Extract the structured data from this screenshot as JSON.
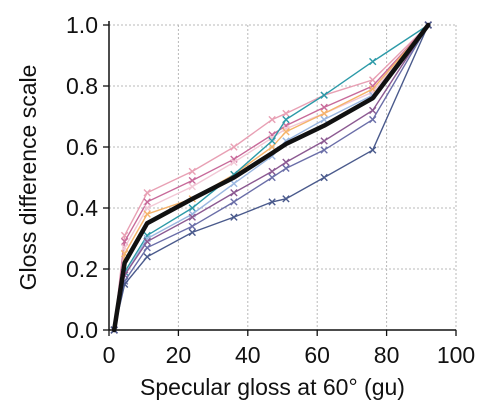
{
  "chart_data": {
    "type": "line",
    "xlabel": "Specular gloss at 60° (gu)",
    "ylabel": "Gloss difference scale",
    "xlim": [
      0,
      100
    ],
    "ylim": [
      0,
      1
    ],
    "xticks": [
      "0",
      "20",
      "40",
      "60",
      "80",
      "100"
    ],
    "yticks": [
      "0.0",
      "0.2",
      "0.4",
      "0.6",
      "0.8",
      "1.0"
    ],
    "grid": true,
    "marker": "x",
    "x": [
      1.5,
      4.5,
      11,
      24,
      36,
      47,
      51,
      62,
      76,
      92
    ],
    "series": [
      {
        "color": "#e8a0b4",
        "values": [
          0,
          0.31,
          0.45,
          0.52,
          0.6,
          0.69,
          0.71,
          0.77,
          0.82,
          1.0
        ]
      },
      {
        "color": "#c86a9a",
        "values": [
          0,
          0.29,
          0.42,
          0.49,
          0.56,
          0.64,
          0.67,
          0.73,
          0.8,
          1.0
        ]
      },
      {
        "color": "#f2c8d6",
        "values": [
          0,
          0.27,
          0.4,
          0.47,
          0.55,
          0.63,
          0.66,
          0.71,
          0.78,
          1.0
        ]
      },
      {
        "color": "#f5b36a",
        "values": [
          0,
          0.25,
          0.38,
          0.43,
          0.51,
          0.6,
          0.65,
          0.71,
          0.79,
          1.0
        ]
      },
      {
        "color": "#2c9aa8",
        "values": [
          0,
          0.19,
          0.31,
          0.4,
          0.51,
          0.62,
          0.69,
          0.77,
          0.88,
          1.0
        ]
      },
      {
        "color": "#9ab6e0",
        "values": [
          0,
          0.18,
          0.3,
          0.38,
          0.48,
          0.57,
          0.62,
          0.69,
          0.77,
          1.0
        ]
      },
      {
        "color": "#8c5a92",
        "values": [
          0,
          0.18,
          0.29,
          0.37,
          0.45,
          0.52,
          0.55,
          0.62,
          0.72,
          1.0
        ]
      },
      {
        "color": "#6a6ea8",
        "values": [
          0,
          0.16,
          0.27,
          0.34,
          0.42,
          0.5,
          0.53,
          0.59,
          0.69,
          1.0
        ]
      },
      {
        "color": "#4a5a8c",
        "values": [
          0,
          0.15,
          0.24,
          0.32,
          0.37,
          0.42,
          0.43,
          0.5,
          0.59,
          1.0
        ]
      }
    ],
    "mean_series": {
      "color": "#111111",
      "values": [
        0,
        0.22,
        0.35,
        0.43,
        0.5,
        0.58,
        0.61,
        0.67,
        0.76,
        1.0
      ]
    }
  }
}
